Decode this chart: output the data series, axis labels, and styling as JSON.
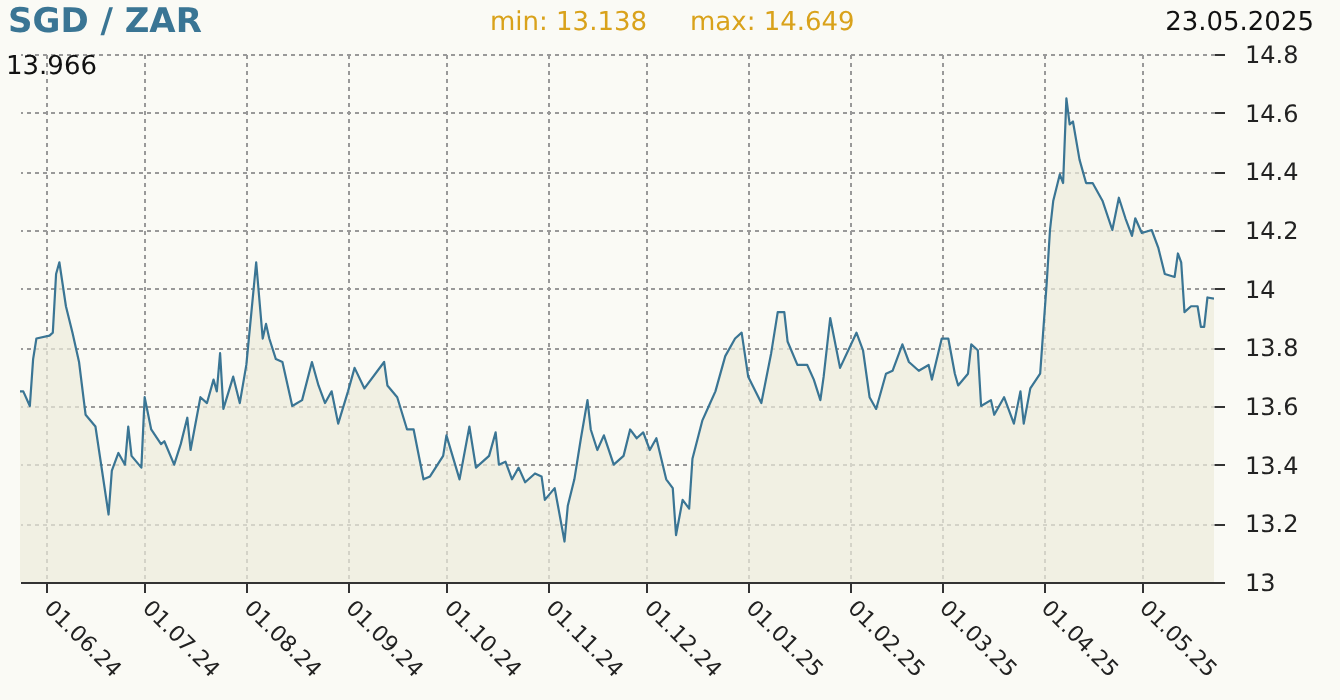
{
  "chart_data": {
    "type": "area",
    "title": "SGD / ZAR",
    "annotations": [
      "min: 13.138",
      "max: 14.649",
      "23.05.2025",
      "13.966"
    ],
    "x": [
      "2024-05-24",
      "2024-05-25",
      "2024-05-27",
      "2024-05-28",
      "2024-05-29",
      "2024-06-02",
      "2024-06-03",
      "2024-06-04",
      "2024-06-05",
      "2024-06-07",
      "2024-06-09",
      "2024-06-11",
      "2024-06-13",
      "2024-06-16",
      "2024-06-18",
      "2024-06-20",
      "2024-06-21",
      "2024-06-23",
      "2024-06-25",
      "2024-06-26",
      "2024-06-27",
      "2024-06-30",
      "2024-07-01",
      "2024-07-03",
      "2024-07-06",
      "2024-07-07",
      "2024-07-10",
      "2024-07-12",
      "2024-07-14",
      "2024-07-15",
      "2024-07-18",
      "2024-07-20",
      "2024-07-22",
      "2024-07-23",
      "2024-07-24",
      "2024-07-25",
      "2024-07-28",
      "2024-07-30",
      "2024-08-01",
      "2024-08-04",
      "2024-08-06",
      "2024-08-07",
      "2024-08-08",
      "2024-08-10",
      "2024-08-12",
      "2024-08-15",
      "2024-08-18",
      "2024-08-21",
      "2024-08-23",
      "2024-08-25",
      "2024-08-27",
      "2024-08-29",
      "2024-09-01",
      "2024-09-03",
      "2024-09-06",
      "2024-09-12",
      "2024-09-13",
      "2024-09-16",
      "2024-09-19",
      "2024-09-21",
      "2024-09-24",
      "2024-09-26",
      "2024-09-30",
      "2024-10-01",
      "2024-10-05",
      "2024-10-08",
      "2024-10-10",
      "2024-10-14",
      "2024-10-16",
      "2024-10-17",
      "2024-10-19",
      "2024-10-21",
      "2024-10-23",
      "2024-10-25",
      "2024-10-28",
      "2024-10-30",
      "2024-10-31",
      "2024-11-03",
      "2024-11-04",
      "2024-11-06",
      "2024-11-07",
      "2024-11-09",
      "2024-11-11",
      "2024-11-13",
      "2024-11-14",
      "2024-11-16",
      "2024-11-18",
      "2024-11-21",
      "2024-11-24",
      "2024-11-26",
      "2024-11-28",
      "2024-11-30",
      "2024-12-02",
      "2024-12-04",
      "2024-12-07",
      "2024-12-09",
      "2024-12-10",
      "2024-12-12",
      "2024-12-14",
      "2024-12-15",
      "2024-12-18",
      "2024-12-20",
      "2024-12-22",
      "2024-12-25",
      "2024-12-28",
      "2024-12-30",
      "2025-01-01",
      "2025-01-05",
      "2025-01-08",
      "2025-01-10",
      "2025-01-12",
      "2025-01-13",
      "2025-01-16",
      "2025-01-19",
      "2025-01-21",
      "2025-01-23",
      "2025-01-24",
      "2025-01-26",
      "2025-01-29",
      "2025-02-03",
      "2025-02-05",
      "2025-02-07",
      "2025-02-09",
      "2025-02-12",
      "2025-02-14",
      "2025-02-17",
      "2025-02-19",
      "2025-02-22",
      "2025-02-25",
      "2025-02-26",
      "2025-03-01",
      "2025-03-03",
      "2025-03-05",
      "2025-03-06",
      "2025-03-09",
      "2025-03-10",
      "2025-03-12",
      "2025-03-13",
      "2025-03-16",
      "2025-03-17",
      "2025-03-20",
      "2025-03-23",
      "2025-03-25",
      "2025-03-26",
      "2025-03-28",
      "2025-03-31",
      "2025-04-02",
      "2025-04-03",
      "2025-04-04",
      "2025-04-06",
      "2025-04-07",
      "2025-04-08",
      "2025-04-09",
      "2025-04-10",
      "2025-04-12",
      "2025-04-14",
      "2025-04-16",
      "2025-04-19",
      "2025-04-22",
      "2025-04-24",
      "2025-04-26",
      "2025-04-28",
      "2025-04-29",
      "2025-05-01",
      "2025-05-04",
      "2025-05-06",
      "2025-05-08",
      "2025-05-11",
      "2025-05-12",
      "2025-05-13",
      "2025-05-14",
      "2025-05-16",
      "2025-05-18",
      "2025-05-19",
      "2025-05-20",
      "2025-05-21",
      "2025-05-23"
    ],
    "series": [
      {
        "color": "#3a7594",
        "values": [
          13.65,
          13.65,
          13.6,
          13.76,
          13.83,
          13.84,
          13.85,
          14.05,
          14.09,
          13.94,
          13.85,
          13.75,
          13.57,
          13.53,
          13.38,
          13.23,
          13.38,
          13.44,
          13.4,
          13.53,
          13.43,
          13.39,
          13.63,
          13.52,
          13.47,
          13.48,
          13.4,
          13.47,
          13.56,
          13.45,
          13.63,
          13.61,
          13.69,
          13.65,
          13.78,
          13.59,
          13.7,
          13.61,
          13.74,
          14.09,
          13.83,
          13.88,
          13.83,
          13.76,
          13.75,
          13.6,
          13.62,
          13.75,
          13.67,
          13.61,
          13.65,
          13.54,
          13.65,
          13.73,
          13.66,
          13.75,
          13.67,
          13.63,
          13.52,
          13.52,
          13.35,
          13.36,
          13.43,
          13.5,
          13.35,
          13.53,
          13.39,
          13.43,
          13.51,
          13.4,
          13.41,
          13.35,
          13.39,
          13.34,
          13.37,
          13.36,
          13.28,
          13.32,
          13.26,
          13.138,
          13.26,
          13.35,
          13.49,
          13.62,
          13.52,
          13.45,
          13.5,
          13.4,
          13.43,
          13.52,
          13.49,
          13.51,
          13.45,
          13.49,
          13.35,
          13.32,
          13.16,
          13.28,
          13.25,
          13.42,
          13.55,
          13.6,
          13.65,
          13.77,
          13.83,
          13.85,
          13.7,
          13.61,
          13.78,
          13.92,
          13.92,
          13.82,
          13.74,
          13.74,
          13.69,
          13.62,
          13.7,
          13.9,
          13.73,
          13.85,
          13.79,
          13.63,
          13.59,
          13.71,
          13.72,
          13.81,
          13.75,
          13.72,
          13.74,
          13.69,
          13.83,
          13.83,
          13.71,
          13.67,
          13.71,
          13.81,
          13.79,
          13.6,
          13.62,
          13.57,
          13.63,
          13.54,
          13.65,
          13.54,
          13.66,
          13.71,
          14.02,
          14.2,
          14.3,
          14.39,
          14.36,
          14.649,
          14.56,
          14.57,
          14.44,
          14.36,
          14.36,
          14.3,
          14.2,
          14.31,
          14.24,
          14.18,
          14.24,
          14.19,
          14.2,
          14.14,
          14.05,
          14.04,
          14.12,
          14.09,
          13.92,
          13.94,
          13.94,
          13.87,
          13.87,
          13.97,
          13.966
        ]
      }
    ],
    "xlim": [
      "2024-05-24",
      "2025-05-23"
    ],
    "xticks": [
      {
        "value": "2024-06-01",
        "label": "01.06.24"
      },
      {
        "value": "2024-07-01",
        "label": "01.07.24"
      },
      {
        "value": "2024-08-01",
        "label": "01.08.24"
      },
      {
        "value": "2024-09-01",
        "label": "01.09.24"
      },
      {
        "value": "2024-10-01",
        "label": "01.10.24"
      },
      {
        "value": "2024-11-01",
        "label": "01.11.24"
      },
      {
        "value": "2024-12-01",
        "label": "01.12.24"
      },
      {
        "value": "2025-01-01",
        "label": "01.01.25"
      },
      {
        "value": "2025-02-01",
        "label": "01.02.25"
      },
      {
        "value": "2025-03-01",
        "label": "01.03.25"
      },
      {
        "value": "2025-04-01",
        "label": "01.04.25"
      },
      {
        "value": "2025-05-01",
        "label": "01.05.25"
      }
    ],
    "ylim": [
      13,
      14.8
    ],
    "yticks": [
      13,
      13.2,
      13.4,
      13.6,
      13.8,
      14,
      14.2,
      14.4,
      14.6,
      14.8
    ],
    "grid": true
  }
}
